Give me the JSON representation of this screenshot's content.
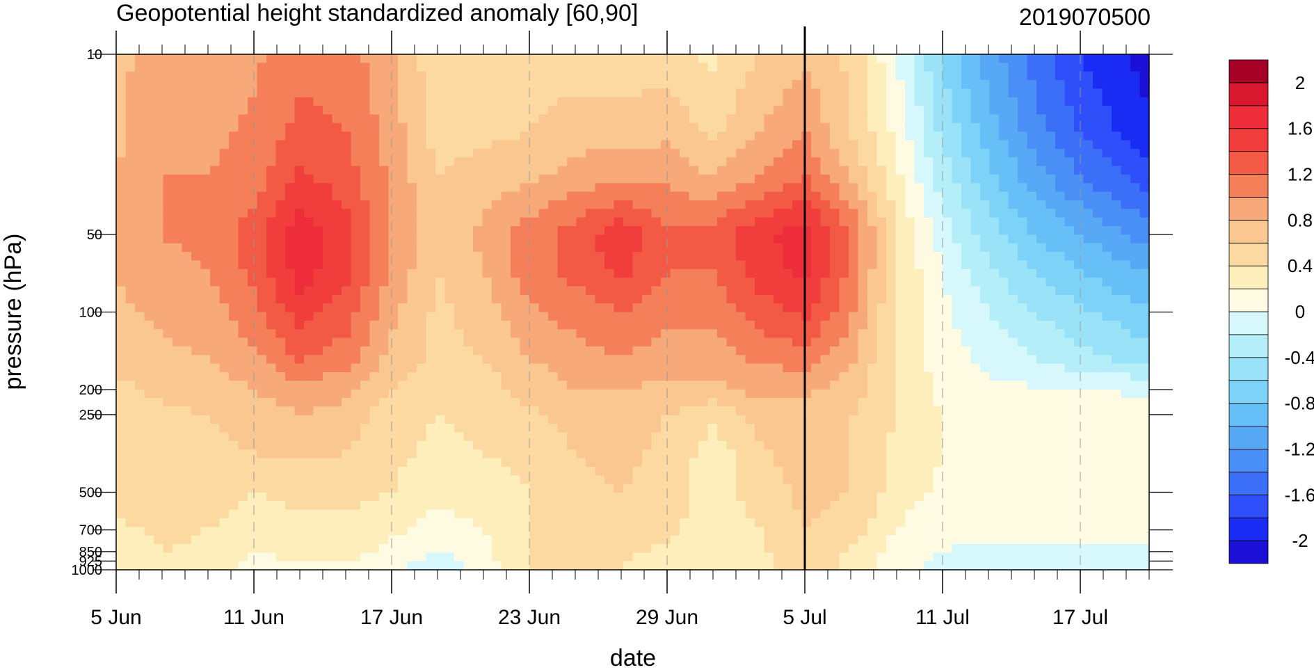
{
  "chart_data": {
    "type": "heatmap",
    "title": "Geopotential height standardized anomaly [60,90]",
    "right_title": "2019070500",
    "xlabel": "date",
    "ylabel": "pressure (hPa)",
    "y_scale": "log",
    "y_reversed": true,
    "xlim": [
      "2019-06-05",
      "2019-07-20"
    ],
    "ylim": [
      1000,
      10
    ],
    "x_ticks": [
      {
        "date": "2019-06-05",
        "label": "5 Jun"
      },
      {
        "date": "2019-06-11",
        "label": "11 Jun"
      },
      {
        "date": "2019-06-17",
        "label": "17 Jun"
      },
      {
        "date": "2019-06-23",
        "label": "23 Jun"
      },
      {
        "date": "2019-06-29",
        "label": "29 Jun"
      },
      {
        "date": "2019-07-05",
        "label": "5 Jul"
      },
      {
        "date": "2019-07-11",
        "label": "11 Jul"
      },
      {
        "date": "2019-07-17",
        "label": "17 Jul"
      }
    ],
    "y_ticks": [
      {
        "value": 10,
        "label": "10"
      },
      {
        "value": 50,
        "label": "50"
      },
      {
        "value": 100,
        "label": "100"
      },
      {
        "value": 200,
        "label": "200"
      },
      {
        "value": 250,
        "label": "250"
      },
      {
        "value": 500,
        "label": "500"
      },
      {
        "value": 700,
        "label": "700"
      },
      {
        "value": 850,
        "label": "850"
      },
      {
        "value": 925,
        "label": "925"
      },
      {
        "value": 1000,
        "label": "1000"
      }
    ],
    "marker_date": "2019-07-05",
    "colorbar": {
      "levels": [
        -2.2,
        -2.0,
        -1.8,
        -1.6,
        -1.4,
        -1.2,
        -1.0,
        -0.8,
        -0.6,
        -0.4,
        -0.2,
        0,
        0.2,
        0.4,
        0.6,
        0.8,
        1.0,
        1.2,
        1.4,
        1.6,
        1.8,
        2.0,
        2.2
      ],
      "colors": [
        "#1c0fd6",
        "#1a2cf4",
        "#2f4ffa",
        "#3c6ff7",
        "#4a8ff5",
        "#57a9f6",
        "#66c0f7",
        "#7dd3f7",
        "#99e2f8",
        "#b3eef9",
        "#d6f7fb",
        "#fefbe2",
        "#fdeebb",
        "#fcd9a0",
        "#f9c78f",
        "#f8a97a",
        "#f47f58",
        "#f35a45",
        "#f23d3d",
        "#ee2d3a",
        "#d8182f",
        "#a50026"
      ],
      "labels": [
        {
          "value": 2.0,
          "text": "2"
        },
        {
          "value": 1.6,
          "text": "1.6"
        },
        {
          "value": 1.2,
          "text": "1.2"
        },
        {
          "value": 0.8,
          "text": "0.8"
        },
        {
          "value": 0.4,
          "text": "0.4"
        },
        {
          "value": 0.0,
          "text": "0"
        },
        {
          "value": -0.4,
          "text": "-0.4"
        },
        {
          "value": -0.8,
          "text": "-0.8"
        },
        {
          "value": -1.2,
          "text": "-1.2"
        },
        {
          "value": -1.6,
          "text": "-1.6"
        },
        {
          "value": -2.0,
          "text": "-2"
        }
      ]
    },
    "field": {
      "x": [
        "2019-06-05",
        "2019-06-07",
        "2019-06-09",
        "2019-06-11",
        "2019-06-13",
        "2019-06-15",
        "2019-06-17",
        "2019-06-19",
        "2019-06-21",
        "2019-06-23",
        "2019-06-25",
        "2019-06-27",
        "2019-06-29",
        "2019-07-01",
        "2019-07-03",
        "2019-07-05",
        "2019-07-07",
        "2019-07-09",
        "2019-07-11",
        "2019-07-13",
        "2019-07-15",
        "2019-07-17",
        "2019-07-19",
        "2019-07-20"
      ],
      "y": [
        10,
        20,
        30,
        50,
        70,
        100,
        150,
        200,
        250,
        350,
        500,
        700,
        850,
        925,
        1000
      ],
      "values": [
        [
          0.75,
          0.9,
          0.85,
          0.95,
          1.15,
          1.1,
          0.85,
          0.45,
          0.4,
          0.5,
          0.5,
          0.45,
          0.5,
          0.35,
          0.6,
          0.75,
          0.55,
          0.0,
          -0.65,
          -1.1,
          -1.5,
          -1.8,
          -2.0,
          -2.1
        ],
        [
          0.75,
          0.95,
          0.95,
          1.05,
          1.25,
          1.2,
          0.9,
          0.5,
          0.55,
          0.6,
          0.7,
          0.7,
          0.75,
          0.55,
          0.8,
          1.0,
          0.6,
          0.15,
          -0.45,
          -0.9,
          -1.3,
          -1.6,
          -1.85,
          -1.95
        ],
        [
          0.8,
          1.0,
          1.0,
          1.1,
          1.45,
          1.3,
          0.95,
          0.6,
          0.7,
          0.75,
          0.9,
          0.95,
          0.95,
          0.8,
          1.0,
          1.2,
          0.8,
          0.25,
          -0.3,
          -0.75,
          -1.1,
          -1.4,
          -1.6,
          -1.7
        ],
        [
          0.85,
          1.0,
          1.05,
          1.3,
          1.72,
          1.5,
          1.0,
          0.65,
          0.85,
          1.1,
          1.3,
          1.55,
          1.25,
          1.3,
          1.55,
          1.7,
          1.2,
          0.4,
          -0.1,
          -0.5,
          -0.8,
          -1.0,
          -1.2,
          -1.3
        ],
        [
          0.8,
          0.95,
          1.0,
          1.25,
          1.7,
          1.45,
          0.95,
          0.6,
          0.8,
          1.1,
          1.25,
          1.45,
          1.2,
          1.2,
          1.5,
          1.65,
          1.15,
          0.4,
          0.0,
          -0.35,
          -0.6,
          -0.8,
          -0.95,
          -1.0
        ],
        [
          0.75,
          0.85,
          0.9,
          1.15,
          1.5,
          1.3,
          0.85,
          0.55,
          0.7,
          0.95,
          1.1,
          1.2,
          1.05,
          1.05,
          1.3,
          1.45,
          1.05,
          0.35,
          0.05,
          -0.2,
          -0.4,
          -0.55,
          -0.7,
          -0.75
        ],
        [
          0.65,
          0.75,
          0.8,
          0.95,
          1.22,
          1.1,
          0.75,
          0.55,
          0.6,
          0.8,
          0.9,
          1.0,
          0.9,
          0.9,
          1.05,
          1.1,
          0.85,
          0.35,
          0.1,
          -0.05,
          -0.2,
          -0.35,
          -0.45,
          -0.5
        ],
        [
          0.55,
          0.65,
          0.7,
          0.8,
          0.95,
          0.85,
          0.6,
          0.45,
          0.5,
          0.7,
          0.8,
          0.8,
          0.75,
          0.75,
          0.85,
          0.85,
          0.7,
          0.4,
          0.15,
          0.05,
          0.02,
          0.0,
          -0.02,
          -0.05
        ],
        [
          0.5,
          0.55,
          0.6,
          0.7,
          0.8,
          0.72,
          0.5,
          0.4,
          0.45,
          0.55,
          0.7,
          0.7,
          0.6,
          0.45,
          0.7,
          0.75,
          0.6,
          0.4,
          0.2,
          0.1,
          0.08,
          0.1,
          0.1,
          0.08
        ],
        [
          0.45,
          0.5,
          0.55,
          0.6,
          0.65,
          0.6,
          0.45,
          0.35,
          0.4,
          0.45,
          0.6,
          0.65,
          0.55,
          0.3,
          0.55,
          0.7,
          0.6,
          0.35,
          0.2,
          0.12,
          0.1,
          0.12,
          0.12,
          0.1
        ],
        [
          0.45,
          0.55,
          0.5,
          0.4,
          0.45,
          0.45,
          0.4,
          0.25,
          0.3,
          0.4,
          0.55,
          0.6,
          0.5,
          0.3,
          0.5,
          0.65,
          0.6,
          0.3,
          0.15,
          0.1,
          0.1,
          0.12,
          0.12,
          0.1
        ],
        [
          0.35,
          0.45,
          0.4,
          0.3,
          0.35,
          0.35,
          0.25,
          0.1,
          0.2,
          0.4,
          0.5,
          0.6,
          0.45,
          0.3,
          0.4,
          0.6,
          0.5,
          0.2,
          0.05,
          0.05,
          0.05,
          0.05,
          0.08,
          0.08
        ],
        [
          0.3,
          0.4,
          0.35,
          0.2,
          0.25,
          0.25,
          0.15,
          0.0,
          0.15,
          0.4,
          0.45,
          0.45,
          0.35,
          0.3,
          0.35,
          0.55,
          0.4,
          0.1,
          0.0,
          -0.05,
          -0.05,
          -0.05,
          -0.05,
          -0.05
        ],
        [
          0.3,
          0.4,
          0.35,
          0.15,
          0.2,
          0.2,
          0.1,
          -0.1,
          0.1,
          0.4,
          0.45,
          0.4,
          0.35,
          0.3,
          0.35,
          0.5,
          0.35,
          0.05,
          -0.02,
          -0.1,
          -0.1,
          -0.1,
          -0.1,
          -0.1
        ],
        [
          0.3,
          0.4,
          0.35,
          0.15,
          0.15,
          0.2,
          0.05,
          -0.15,
          0.05,
          0.4,
          0.45,
          0.4,
          0.35,
          0.3,
          0.35,
          0.5,
          0.35,
          0.05,
          -0.05,
          -0.15,
          -0.15,
          -0.15,
          -0.15,
          -0.15
        ]
      ]
    }
  }
}
